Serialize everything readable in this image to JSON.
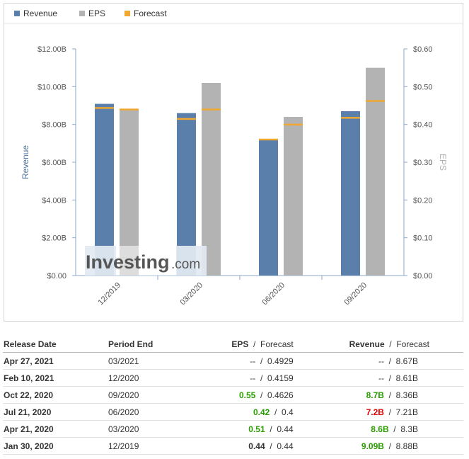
{
  "legend": [
    {
      "label": "Revenue",
      "color": "#5b7fab"
    },
    {
      "label": "EPS",
      "color": "#b3b3b3"
    },
    {
      "label": "Forecast",
      "color": "#f0a830"
    }
  ],
  "watermark": {
    "brand": "Investing",
    "suffix": ".com"
  },
  "chart_data": {
    "type": "bar",
    "categories": [
      "12/2019",
      "03/2020",
      "06/2020",
      "09/2020"
    ],
    "series": [
      {
        "name": "Revenue",
        "axis": "left",
        "values": [
          9.09,
          8.6,
          7.2,
          8.7
        ],
        "forecast": [
          8.88,
          8.3,
          7.21,
          8.36
        ],
        "color": "#5b7fab"
      },
      {
        "name": "EPS",
        "axis": "right",
        "values": [
          0.44,
          0.51,
          0.42,
          0.55
        ],
        "forecast": [
          0.44,
          0.44,
          0.4,
          0.4626
        ],
        "color": "#b3b3b3"
      }
    ],
    "forecast_color": "#f0a830",
    "ylabel": "Revenue",
    "y2label": "EPS",
    "ylim": [
      0,
      12
    ],
    "y2lim": [
      0,
      0.6
    ],
    "y_ticks": [
      "$0.00",
      "$2.00B",
      "$4.00B",
      "$6.00B",
      "$8.00B",
      "$10.00B",
      "$12.00B"
    ],
    "y2_ticks": [
      "$0.00",
      "$0.10",
      "$0.20",
      "$0.30",
      "$0.40",
      "$0.50",
      "$0.60"
    ],
    "grid": false,
    "legend_position": "top-left"
  },
  "table": {
    "headers": {
      "release": "Release Date",
      "period": "Period End",
      "eps": "EPS",
      "eps_fc": "Forecast",
      "rev": "Revenue",
      "rev_fc": "Forecast",
      "sep": "/"
    },
    "rows": [
      {
        "release": "Apr 27, 2021",
        "period": "03/2021",
        "eps": "--",
        "eps_state": "muted",
        "eps_fc": "0.4929",
        "rev": "--",
        "rev_state": "muted",
        "rev_fc": "8.67B"
      },
      {
        "release": "Feb 10, 2021",
        "period": "12/2020",
        "eps": "--",
        "eps_state": "muted",
        "eps_fc": "0.4159",
        "rev": "--",
        "rev_state": "muted",
        "rev_fc": "8.61B"
      },
      {
        "release": "Oct 22, 2020",
        "period": "09/2020",
        "eps": "0.55",
        "eps_state": "pos",
        "eps_fc": "0.4626",
        "rev": "8.7B",
        "rev_state": "pos",
        "rev_fc": "8.36B"
      },
      {
        "release": "Jul 21, 2020",
        "period": "06/2020",
        "eps": "0.42",
        "eps_state": "pos",
        "eps_fc": "0.4",
        "rev": "7.2B",
        "rev_state": "neg",
        "rev_fc": "7.21B"
      },
      {
        "release": "Apr 21, 2020",
        "period": "03/2020",
        "eps": "0.51",
        "eps_state": "pos",
        "eps_fc": "0.44",
        "rev": "8.6B",
        "rev_state": "pos",
        "rev_fc": "8.3B"
      },
      {
        "release": "Jan 30, 2020",
        "period": "12/2019",
        "eps": "0.44",
        "eps_state": "neu",
        "eps_fc": "0.44",
        "rev": "9.09B",
        "rev_state": "pos",
        "rev_fc": "8.88B"
      }
    ]
  }
}
